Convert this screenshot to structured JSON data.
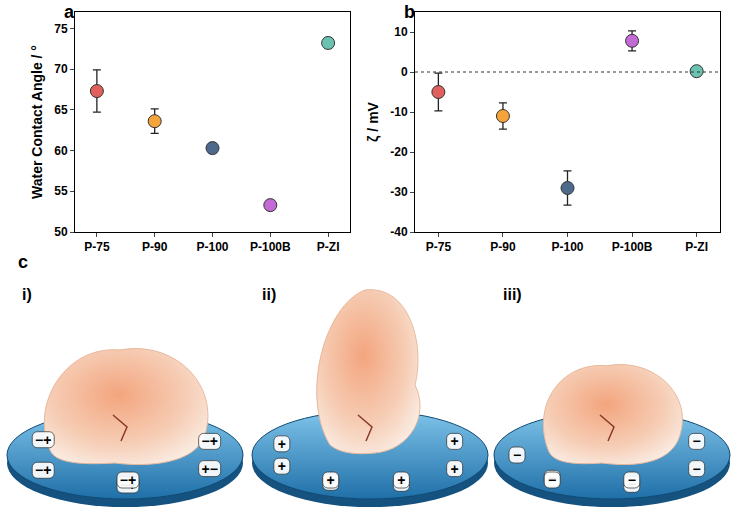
{
  "chart_data": [
    {
      "type": "scatter",
      "panel_label": "a",
      "categories": [
        "P-75",
        "P-90",
        "P-100",
        "P-100B",
        "P-ZI"
      ],
      "values": [
        67.3,
        63.6,
        60.3,
        53.3,
        73.2
      ],
      "errors": [
        2.6,
        1.5,
        0.4,
        0.4,
        0.6
      ],
      "colors": [
        "#e0605e",
        "#f5a43c",
        "#4d6a8c",
        "#c46ad6",
        "#6cc2b0"
      ],
      "marker": "circle",
      "y_label": "Water Contact Angle / °",
      "ylim": [
        50,
        77
      ],
      "yticks": [
        50,
        55,
        60,
        65,
        70,
        75
      ],
      "grid": false
    },
    {
      "type": "scatter",
      "panel_label": "b",
      "categories": [
        "P-75",
        "P-90",
        "P-100",
        "P-100B",
        "P-ZI"
      ],
      "values": [
        -5,
        -11,
        -29,
        7.8,
        0.2
      ],
      "errors": [
        4.7,
        3.3,
        4.3,
        2.5,
        0.8
      ],
      "colors": [
        "#e0605e",
        "#f5a43c",
        "#4d6a8c",
        "#c46ad6",
        "#6cc2b0"
      ],
      "marker": "circle",
      "y_label": "ζ / mV",
      "ylim": [
        -40,
        15
      ],
      "yticks": [
        -40,
        -30,
        -20,
        -10,
        0,
        10
      ],
      "grid": false,
      "hline": 0
    }
  ],
  "panel_c": {
    "label": "c",
    "panels": [
      {
        "label": "i)",
        "surface_signs": [
          "+−",
          "−+",
          "−+",
          "−+",
          "−+",
          "−+"
        ]
      },
      {
        "label": "ii)",
        "surface_signs": [
          "+",
          "+",
          "+",
          "+",
          "+",
          "+",
          "+",
          "+"
        ]
      },
      {
        "label": "iii)",
        "surface_signs": [
          "−",
          "−",
          "−",
          "−",
          "−",
          "−",
          "−"
        ]
      }
    ]
  }
}
